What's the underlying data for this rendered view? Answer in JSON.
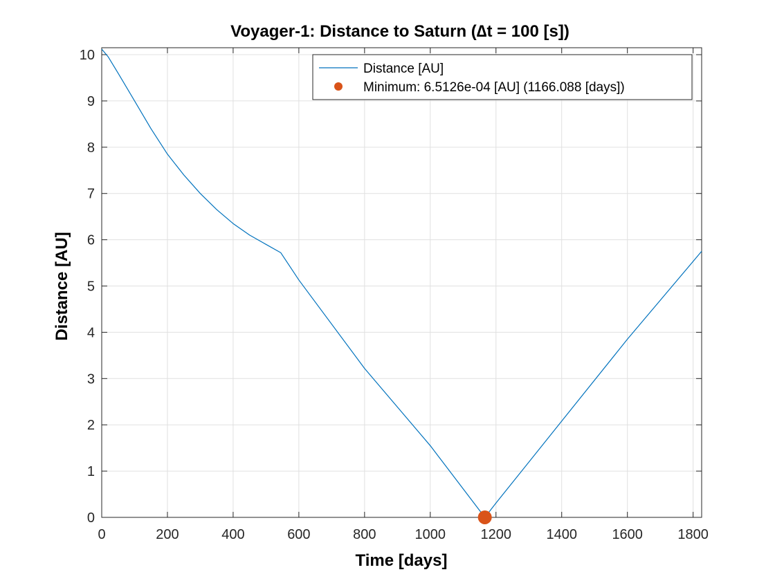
{
  "chart_data": {
    "type": "line",
    "title": "Voyager-1: Distance to Saturn (∆t = 100 [s])",
    "xlabel": "Time [days]",
    "ylabel": "Distance [AU]",
    "xlim": [
      0,
      1826
    ],
    "ylim": [
      0,
      10.15
    ],
    "grid": true,
    "legend_position": "top-right",
    "xticks": [
      0,
      200,
      400,
      600,
      800,
      1000,
      1200,
      1400,
      1600,
      1800
    ],
    "yticks": [
      0,
      1,
      2,
      3,
      4,
      5,
      6,
      7,
      8,
      9,
      10
    ],
    "series": [
      {
        "name": "Distance [AU]",
        "color": "#0072bd",
        "x": [
          0,
          20,
          50,
          100,
          150,
          200,
          250,
          300,
          350,
          400,
          450,
          500,
          545,
          600,
          800,
          1000,
          1166.088,
          1200,
          1400,
          1600,
          1826
        ],
        "y": [
          10.12,
          9.95,
          9.6,
          9.0,
          8.4,
          7.85,
          7.4,
          7.0,
          6.65,
          6.35,
          6.1,
          5.9,
          5.72,
          5.13,
          3.22,
          1.55,
          0.00065,
          0.31,
          2.08,
          3.85,
          5.75
        ]
      },
      {
        "name": "Minimum: 6.5126e-04 [AU] (1166.088 [days])",
        "color": "#d95319",
        "marker": "circle",
        "x": [
          1166.088
        ],
        "y": [
          0.00065126
        ]
      }
    ]
  }
}
